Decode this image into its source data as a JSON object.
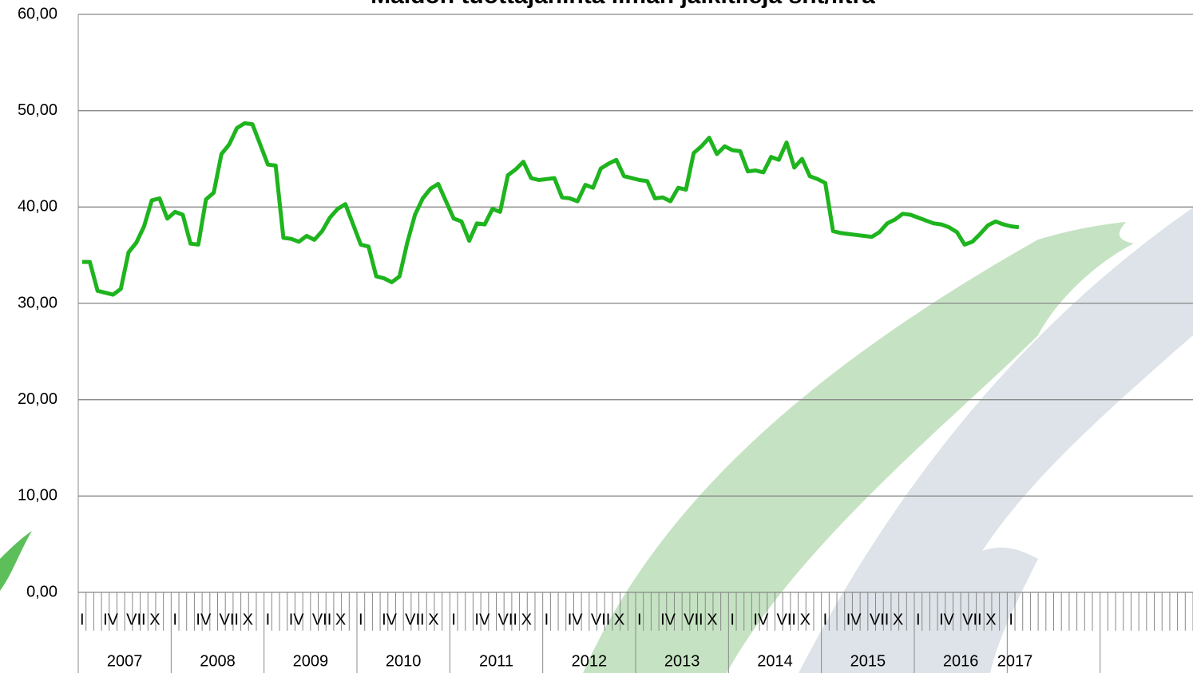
{
  "chart_data": {
    "type": "line",
    "title": "Maidon tuottajahinta ilman jälkitilejä snt/litra",
    "categories": [
      "I",
      null,
      null,
      "IV",
      null,
      null,
      "VII",
      null,
      null,
      "X",
      null,
      null,
      "I",
      null,
      null,
      "IV",
      null,
      null,
      "VII",
      null,
      null,
      "X",
      null,
      null,
      "I",
      null,
      null,
      "IV",
      null,
      null,
      "VII",
      null,
      null,
      "X",
      null,
      null,
      "I",
      null,
      null,
      "IV",
      null,
      null,
      "VII",
      null,
      null,
      "X",
      null,
      null,
      "I",
      null,
      null,
      "IV",
      null,
      null,
      "VII",
      null,
      null,
      "X",
      null,
      null,
      "I",
      null,
      null,
      "IV",
      null,
      null,
      "VII",
      null,
      null,
      "X",
      null,
      null,
      "I",
      null,
      null,
      "IV",
      null,
      null,
      "VII",
      null,
      null,
      "X",
      null,
      null,
      "I",
      null,
      null,
      "IV",
      null,
      null,
      "VII",
      null,
      null,
      "X",
      null,
      null,
      "I",
      null,
      null,
      "IV",
      null,
      null,
      "VII",
      null,
      null,
      "X",
      null,
      null,
      "I",
      null,
      null,
      "IV",
      null,
      null,
      "VII",
      null,
      null,
      "X",
      null,
      null,
      "I",
      null,
      null,
      null,
      null,
      null,
      null,
      null,
      null,
      null,
      null,
      null,
      null,
      null,
      null,
      null,
      null,
      null,
      null,
      null,
      null,
      null,
      null,
      null
    ],
    "years": [
      "2007",
      "2008",
      "2009",
      "2010",
      "2011",
      "2012",
      "2013",
      "2014",
      "2015",
      "2016",
      "2017"
    ],
    "series": [
      {
        "color": "#1eb41e",
        "values": [
          34.3,
          34.3,
          31.3,
          31.1,
          30.9,
          31.5,
          35.3,
          36.3,
          38.0,
          40.7,
          40.9,
          38.8,
          39.5,
          39.2,
          36.2,
          36.1,
          40.8,
          41.5,
          45.5,
          46.5,
          48.2,
          48.7,
          48.6,
          46.5,
          44.4,
          44.3,
          36.8,
          36.7,
          36.4,
          37.0,
          36.6,
          37.5,
          38.9,
          39.8,
          40.3,
          38.2,
          36.1,
          35.9,
          32.8,
          32.6,
          32.2,
          32.8,
          36.3,
          39.2,
          40.9,
          41.9,
          42.4,
          40.6,
          38.8,
          38.5,
          36.5,
          38.3,
          38.2,
          39.8,
          39.5,
          43.3,
          43.9,
          44.7,
          43.0,
          42.8,
          42.9,
          43.0,
          41.0,
          40.9,
          40.6,
          42.3,
          42.0,
          44.0,
          44.5,
          44.9,
          43.2,
          43.0,
          42.8,
          42.7,
          40.9,
          41.0,
          40.6,
          42.0,
          41.8,
          45.6,
          46.3,
          47.2,
          45.5,
          46.3,
          45.9,
          45.8,
          43.7,
          43.8,
          43.6,
          45.2,
          44.9,
          46.7,
          44.1,
          45.0,
          43.2,
          42.9,
          42.5,
          37.5,
          37.3,
          37.2,
          37.1,
          37.0,
          36.9,
          37.4,
          38.3,
          38.7,
          39.3,
          39.2,
          38.9,
          38.6,
          38.3,
          38.2,
          37.9,
          37.4,
          36.1,
          36.4,
          37.2,
          38.1,
          38.5,
          38.2,
          38.0,
          37.9,
          null,
          null,
          null,
          null,
          null,
          null,
          null,
          null,
          null,
          null,
          null,
          null,
          null,
          null,
          null,
          null,
          null,
          null,
          null,
          null,
          null,
          null
        ]
      }
    ],
    "ylim": [
      0,
      60
    ],
    "yticks": [
      {
        "value": 0,
        "label": "0,00"
      },
      {
        "value": 10,
        "label": "10,00"
      },
      {
        "value": 20,
        "label": "20,00"
      },
      {
        "value": 30,
        "label": "30,00"
      },
      {
        "value": 40,
        "label": "40,00"
      },
      {
        "value": 50,
        "label": "50,00"
      },
      {
        "value": 60,
        "label": "60,00"
      }
    ],
    "grid": true
  }
}
